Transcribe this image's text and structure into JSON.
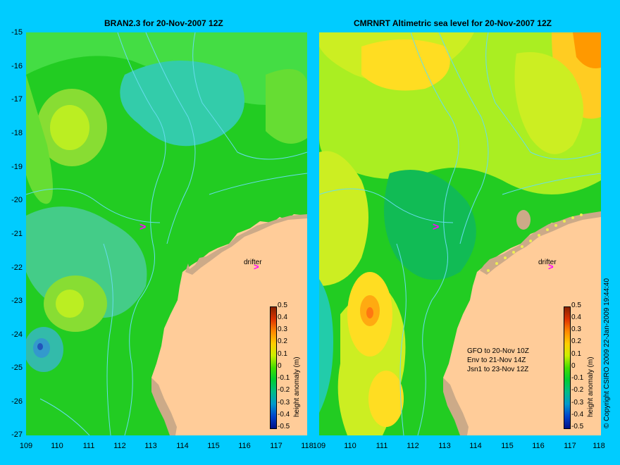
{
  "left_panel": {
    "title": "BRAN2.3 for 20-Nov-2007 12Z",
    "drifter_label": "drifter"
  },
  "right_panel": {
    "title": "CMRNRT Altimetric sea level  for 20-Nov-2007 12Z",
    "drifter_label": "drifter",
    "satellite_notes": [
      "GFO to 20-Nov 10Z",
      "Env to 21-Nov 14Z",
      "Jsn1 to 23-Nov 12Z"
    ]
  },
  "latitude_ticks": [
    "-15",
    "-16",
    "-17",
    "-18",
    "-19",
    "-20",
    "-21",
    "-22",
    "-23",
    "-24",
    "-25",
    "-26",
    "-27"
  ],
  "longitude_ticks": [
    "109",
    "110",
    "111",
    "112",
    "113",
    "114",
    "115",
    "116",
    "117",
    "118"
  ],
  "colorbar": {
    "title": "height anomaly (m)",
    "ticks": [
      "0.5",
      "0.4",
      "0.3",
      "0.2",
      "0.1",
      "0",
      "-0.1",
      "-0.2",
      "-0.3",
      "-0.4",
      "-0.5"
    ]
  },
  "copyright": "© Copyright CSIRO 2009   22-Jan-2009 19:44:40",
  "colors": {
    "background": "#00ccff",
    "land": "#ffcc99",
    "coast_land": "#ccaa88",
    "marker": "#ff00ff"
  }
}
